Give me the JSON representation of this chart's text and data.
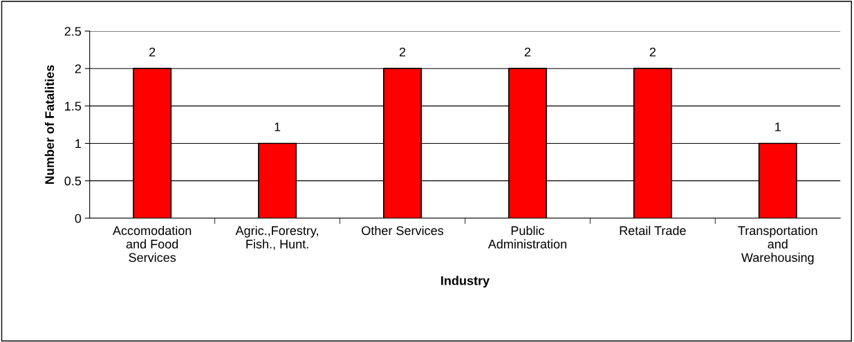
{
  "chart_data": {
    "type": "bar",
    "xlabel": "Industry",
    "ylabel": "Number of Fatalities",
    "categories": [
      "Accomodation\nand Food\nServices",
      "Agric.,Forestry,\nFish., Hunt.",
      "Other Services",
      "Public\nAdministration",
      "Retail Trade",
      "Transportation\nand\nWarehousing"
    ],
    "values": [
      2,
      1,
      2,
      2,
      2,
      1
    ],
    "color": "#ff0000",
    "ylim": [
      0,
      2.5
    ],
    "yticks": [
      0,
      0.5,
      1,
      1.5,
      2,
      2.5
    ],
    "grid": "y",
    "data_labels": true
  }
}
